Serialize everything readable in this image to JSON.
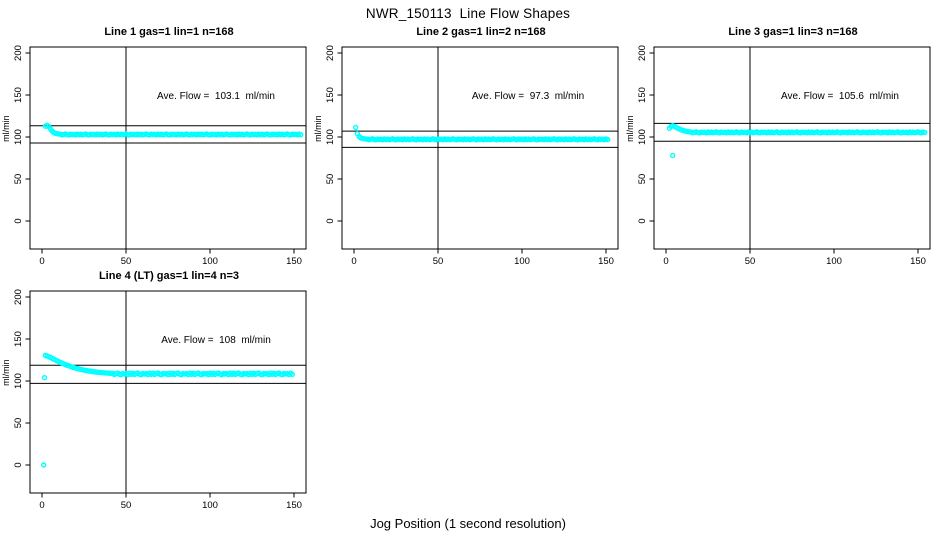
{
  "title": "NWR_150113  Line Flow Shapes",
  "xlabel": "Jog Position (1 second resolution)",
  "chart_data": {
    "type": "scatter",
    "title": "NWR_150113  Line Flow Shapes",
    "xlabel": "Jog Position (1 second resolution)",
    "ylabel": "ml/min",
    "layout": "2 rows x 3 cols, 4 plots used, grid off, no legend",
    "point_color": "#00FFFF",
    "line_color": "#000000",
    "x_ticks": [
      0,
      50,
      100,
      150
    ],
    "y_ticks": [
      0,
      50,
      100,
      150,
      200
    ],
    "xlim": [
      -6,
      161
    ],
    "ylim": [
      -35,
      210
    ],
    "plots": [
      {
        "title": "Line 1 gas=1 lin=1 n=168",
        "annotation": "Ave. Flow =  103.1  ml/min",
        "ave_flow": 103.1,
        "ref_lines": [
          113.4,
          92.8
        ],
        "vline_x": 50,
        "outliers": [],
        "series": {
          "x_start": 2,
          "x_step": 1,
          "y": [
            112.8,
            113.9,
            112.4,
            109.6,
            107.1,
            105.3,
            104.4,
            103.9,
            103.6,
            103.3,
            102.6,
            103.1,
            103.6,
            102.8,
            102.4,
            103.4,
            102.9,
            103.2,
            102.5,
            103.5,
            102.7,
            103.3,
            102.6,
            103.1,
            103.6,
            102.8,
            102.4,
            103.4,
            102.9,
            103.2,
            102.5,
            103.5,
            102.7,
            103.3,
            102.6,
            103.1,
            103.6,
            102.8,
            102.4,
            103.4,
            102.9,
            103.2,
            102.5,
            103.5,
            102.7,
            103.3,
            102.6,
            103.1,
            103.6,
            102.8,
            102.4,
            103.4,
            102.9,
            103.2,
            102.5,
            103.5,
            102.7,
            103.3,
            102.6,
            103.1,
            103.6,
            102.8,
            102.4,
            103.4,
            102.9,
            103.2,
            102.5,
            103.5,
            102.7,
            103.3,
            102.6,
            103.1,
            103.6,
            102.8,
            102.4,
            103.4,
            102.9,
            103.2,
            102.5,
            103.5,
            102.7,
            103.3,
            102.6,
            103.1,
            103.6,
            102.8,
            102.4,
            103.4,
            102.9,
            103.2,
            102.5,
            103.5,
            102.7,
            103.3,
            102.6,
            103.1,
            103.6,
            102.8,
            102.4,
            103.4,
            102.9,
            103.2,
            102.5,
            103.5,
            102.7,
            103.3,
            102.6,
            103.1,
            103.6,
            102.8,
            102.4,
            103.4,
            102.9,
            103.2,
            102.5,
            103.5,
            102.7,
            103.3,
            102.6,
            103.1,
            103.6,
            102.8,
            102.4,
            103.4,
            102.9,
            103.2,
            102.5,
            103.5,
            102.7,
            103.3,
            102.6,
            103.1,
            103.6,
            102.8,
            102.4,
            103.4,
            102.9,
            103.2,
            102.5,
            103.5,
            102.7,
            103.3,
            102.6,
            103.1,
            103.6,
            102.8,
            102.4,
            103.4,
            102.9,
            103.2,
            102.5,
            103.5,
            102.7
          ]
        }
      },
      {
        "title": "Line 2 gas=1 lin=2 n=168",
        "annotation": "Ave. Flow =  97.3  ml/min",
        "ave_flow": 97.3,
        "ref_lines": [
          107.0,
          87.6
        ],
        "vline_x": 50,
        "outliers": [],
        "series": {
          "x_start": 1,
          "x_step": 1,
          "y": [
            111.3,
            104.0,
            100.6,
            99.1,
            98.3,
            97.9,
            97.6,
            97.5,
            96.8,
            97.3,
            97.8,
            97.0,
            96.6,
            97.6,
            97.1,
            97.4,
            96.7,
            97.7,
            96.9,
            97.5,
            96.8,
            97.3,
            97.8,
            97.0,
            96.6,
            97.6,
            97.1,
            97.4,
            96.7,
            97.7,
            96.9,
            97.5,
            96.8,
            97.3,
            97.8,
            97.0,
            96.6,
            97.6,
            97.1,
            97.4,
            96.7,
            97.7,
            96.9,
            97.5,
            96.8,
            97.3,
            97.8,
            97.0,
            96.6,
            97.6,
            97.1,
            97.4,
            96.7,
            97.7,
            96.9,
            97.5,
            96.8,
            97.3,
            97.8,
            97.0,
            96.6,
            97.6,
            97.1,
            97.4,
            96.7,
            97.7,
            96.9,
            97.5,
            96.8,
            97.3,
            97.8,
            97.0,
            96.6,
            97.6,
            97.1,
            97.4,
            96.7,
            97.7,
            96.9,
            97.5,
            96.8,
            97.3,
            97.8,
            97.0,
            96.6,
            97.6,
            97.1,
            97.4,
            96.7,
            97.7,
            96.9,
            97.5,
            96.8,
            97.3,
            97.8,
            97.0,
            96.6,
            97.6,
            97.1,
            97.4,
            96.7,
            97.7,
            96.9,
            97.5,
            96.8,
            97.3,
            97.8,
            97.0,
            96.6,
            97.6,
            97.1,
            97.4,
            96.7,
            97.7,
            96.9,
            97.5,
            96.8,
            97.3,
            97.8,
            97.0,
            96.6,
            97.6,
            97.1,
            97.4,
            96.7,
            97.7,
            96.9,
            97.5,
            96.8,
            97.3,
            97.8,
            97.0,
            96.6,
            97.6,
            97.1,
            97.4,
            96.7,
            97.7,
            96.9,
            97.5,
            96.8,
            97.3,
            97.8,
            97.0,
            96.6,
            97.6,
            97.1,
            97.4,
            96.7,
            97.7,
            96.9
          ]
        }
      },
      {
        "title": "Line 3 gas=1 lin=3 n=168",
        "annotation": "Ave. Flow =  105.6  ml/min",
        "ave_flow": 105.6,
        "ref_lines": [
          116.2,
          95.0
        ],
        "vline_x": 50,
        "outliers": [
          [
            4,
            78
          ]
        ],
        "series": {
          "x_start": 2,
          "x_step": 1,
          "y": [
            110.4,
            112.6,
            113.4,
            112.7,
            111.6,
            110.4,
            109.4,
            108.6,
            107.9,
            107.3,
            106.8,
            106.4,
            106.1,
            105.8,
            105.1,
            105.6,
            106.1,
            105.3,
            104.9,
            105.9,
            105.4,
            105.7,
            105.0,
            106.0,
            105.2,
            105.8,
            105.1,
            105.6,
            106.1,
            105.3,
            104.9,
            105.9,
            105.4,
            105.7,
            105.0,
            106.0,
            105.2,
            105.8,
            105.1,
            105.6,
            106.1,
            105.3,
            104.9,
            105.9,
            105.4,
            105.7,
            105.0,
            106.0,
            105.2,
            105.8,
            105.1,
            105.6,
            106.1,
            105.3,
            104.9,
            105.9,
            105.4,
            105.7,
            105.0,
            106.0,
            105.2,
            105.8,
            105.1,
            105.6,
            106.1,
            105.3,
            104.9,
            105.9,
            105.4,
            105.7,
            105.0,
            106.0,
            105.2,
            105.8,
            105.1,
            105.6,
            106.1,
            105.3,
            104.9,
            105.9,
            105.4,
            105.7,
            105.0,
            106.0,
            105.2,
            105.8,
            105.1,
            105.6,
            106.1,
            105.3,
            104.9,
            105.9,
            105.4,
            105.7,
            105.0,
            106.0,
            105.2,
            105.8,
            105.1,
            105.6,
            106.1,
            105.3,
            104.9,
            105.9,
            105.4,
            105.7,
            105.0,
            106.0,
            105.2,
            105.8,
            105.1,
            105.6,
            106.1,
            105.3,
            104.9,
            105.9,
            105.4,
            105.7,
            105.0,
            106.0,
            105.2,
            105.8,
            105.1,
            105.6,
            106.1,
            105.3,
            104.9,
            105.9,
            105.4,
            105.7,
            105.0,
            106.0,
            105.2,
            105.8,
            105.1,
            105.6,
            106.1,
            105.3,
            104.9,
            105.9,
            105.4,
            105.7,
            105.0,
            106.0,
            105.2,
            105.8,
            105.1,
            105.6,
            106.1,
            105.3,
            104.9,
            105.9,
            105.4
          ]
        }
      },
      {
        "title": "Line 4 (LT) gas=1 lin=4 n=3",
        "annotation": "Ave. Flow =  108  ml/min",
        "ave_flow": 108,
        "ref_lines": [
          118.8,
          97.2
        ],
        "vline_x": 50,
        "outliers": [
          [
            1,
            0
          ],
          [
            1.5,
            104
          ]
        ],
        "series": {
          "x_start": 2,
          "x_step": 1,
          "y": [
            130.5,
            129.8,
            128.9,
            128.0,
            127.0,
            126.0,
            125.0,
            124.0,
            123.0,
            122.1,
            121.2,
            120.3,
            119.5,
            118.7,
            118.0,
            117.3,
            116.6,
            116.0,
            115.4,
            114.8,
            114.3,
            113.8,
            113.4,
            113.0,
            112.6,
            112.2,
            111.9,
            111.6,
            111.3,
            111.0,
            110.8,
            110.5,
            110.3,
            110.1,
            109.9,
            109.8,
            109.6,
            109.5,
            109.3,
            109.2,
            109.3,
            107.8,
            108.8,
            109.6,
            108.1,
            107.5,
            109.0,
            108.3,
            108.9,
            107.7,
            109.4,
            108.0,
            109.3,
            107.8,
            108.8,
            109.6,
            108.1,
            107.5,
            109.0,
            108.3,
            108.9,
            107.7,
            109.4,
            108.0,
            109.3,
            107.8,
            108.8,
            109.6,
            108.1,
            107.5,
            109.0,
            108.3,
            108.9,
            107.7,
            109.4,
            108.0,
            109.3,
            107.8,
            108.8,
            109.6,
            108.1,
            107.5,
            109.0,
            108.3,
            108.9,
            107.7,
            109.4,
            108.0,
            109.3,
            107.8,
            108.8,
            109.6,
            108.1,
            107.5,
            109.0,
            108.3,
            108.9,
            107.7,
            109.4,
            108.0,
            109.3,
            107.8,
            108.8,
            109.6,
            108.1,
            107.5,
            109.0,
            108.3,
            108.9,
            107.7,
            109.4,
            108.0,
            109.3,
            107.8,
            108.8,
            109.6,
            108.1,
            107.5,
            109.0,
            108.3,
            108.9,
            107.7,
            109.4,
            108.0,
            109.3,
            107.8,
            108.8,
            109.6,
            108.1,
            107.5,
            109.0,
            108.3,
            108.9,
            107.7,
            109.4,
            108.0,
            109.3,
            107.8,
            108.8,
            109.6,
            108.1,
            107.5,
            109.0,
            108.3,
            108.9,
            107.7,
            109.4,
            108.0
          ]
        }
      }
    ]
  }
}
